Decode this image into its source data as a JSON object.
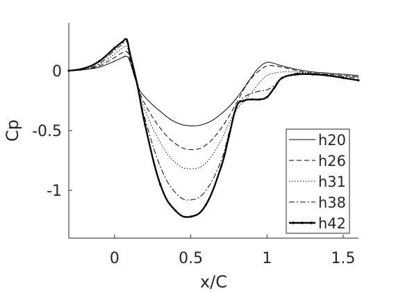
{
  "chart_data": {
    "type": "line",
    "title": "",
    "xlabel": "x/C",
    "ylabel": "Cp",
    "xlim": [
      -0.3,
      1.6
    ],
    "ylim": [
      -1.4,
      0.4
    ],
    "xticks": [
      0,
      0.5,
      1,
      1.5
    ],
    "xtick_labels": [
      "0",
      "0.5",
      "1",
      "1.5"
    ],
    "yticks": [
      0,
      -0.5,
      -1
    ],
    "ytick_labels": [
      "0",
      "-0.5",
      "-1"
    ],
    "grid": false,
    "legend_position": "bottom-right",
    "series": [
      {
        "name": "h20",
        "style": "solid",
        "x": [
          -0.3,
          -0.2,
          -0.1,
          0.0,
          0.05,
          0.08,
          0.1,
          0.15,
          0.2,
          0.3,
          0.4,
          0.5,
          0.6,
          0.7,
          0.8,
          0.9,
          0.95,
          1.0,
          1.05,
          1.1,
          1.2,
          1.3,
          1.4,
          1.5,
          1.6
        ],
        "y": [
          0.0,
          0.01,
          0.03,
          0.08,
          0.11,
          0.12,
          0.08,
          -0.12,
          -0.22,
          -0.34,
          -0.43,
          -0.46,
          -0.44,
          -0.36,
          -0.23,
          -0.05,
          0.03,
          0.07,
          0.06,
          0.04,
          0.01,
          -0.01,
          -0.02,
          -0.03,
          -0.04
        ]
      },
      {
        "name": "h26",
        "style": "dashed",
        "x": [
          -0.3,
          -0.2,
          -0.1,
          0.0,
          0.05,
          0.08,
          0.1,
          0.15,
          0.2,
          0.3,
          0.4,
          0.5,
          0.6,
          0.7,
          0.8,
          0.85,
          0.9,
          0.95,
          1.0,
          1.05,
          1.1,
          1.2,
          1.3,
          1.4,
          1.5,
          1.6
        ],
        "y": [
          0.0,
          0.01,
          0.04,
          0.11,
          0.15,
          0.16,
          0.1,
          -0.12,
          -0.28,
          -0.48,
          -0.61,
          -0.66,
          -0.62,
          -0.48,
          -0.27,
          -0.15,
          -0.06,
          0.0,
          0.04,
          0.04,
          0.03,
          0.0,
          -0.02,
          -0.03,
          -0.04,
          -0.05
        ]
      },
      {
        "name": "h31",
        "style": "dotted",
        "x": [
          -0.3,
          -0.2,
          -0.1,
          0.0,
          0.05,
          0.08,
          0.1,
          0.15,
          0.2,
          0.3,
          0.4,
          0.5,
          0.6,
          0.7,
          0.75,
          0.8,
          0.85,
          0.9,
          0.95,
          1.0,
          1.05,
          1.1,
          1.2,
          1.3,
          1.4,
          1.5,
          1.6
        ],
        "y": [
          0.0,
          0.01,
          0.05,
          0.14,
          0.19,
          0.2,
          0.12,
          -0.12,
          -0.33,
          -0.6,
          -0.77,
          -0.82,
          -0.77,
          -0.58,
          -0.44,
          -0.33,
          -0.25,
          -0.18,
          -0.1,
          -0.04,
          -0.02,
          -0.01,
          -0.01,
          -0.02,
          -0.03,
          -0.04,
          -0.05
        ]
      },
      {
        "name": "h38",
        "style": "dashdot",
        "x": [
          -0.3,
          -0.2,
          -0.1,
          0.0,
          0.05,
          0.08,
          0.1,
          0.15,
          0.2,
          0.3,
          0.4,
          0.5,
          0.6,
          0.7,
          0.75,
          0.8,
          0.85,
          0.9,
          0.95,
          1.0,
          1.05,
          1.1,
          1.2,
          1.3,
          1.4,
          1.5,
          1.6
        ],
        "y": [
          0.0,
          0.01,
          0.06,
          0.17,
          0.22,
          0.24,
          0.14,
          -0.12,
          -0.4,
          -0.8,
          -1.02,
          -1.08,
          -1.0,
          -0.75,
          -0.52,
          -0.3,
          -0.22,
          -0.19,
          -0.17,
          -0.16,
          -0.12,
          -0.06,
          -0.02,
          -0.03,
          -0.04,
          -0.05,
          -0.06
        ]
      },
      {
        "name": "h42",
        "style": "bold-dotted",
        "x": [
          -0.3,
          -0.2,
          -0.1,
          0.0,
          0.05,
          0.08,
          0.1,
          0.15,
          0.2,
          0.3,
          0.4,
          0.5,
          0.6,
          0.7,
          0.75,
          0.8,
          0.85,
          0.9,
          0.95,
          1.0,
          1.05,
          1.1,
          1.2,
          1.3,
          1.4,
          1.5,
          1.6
        ],
        "y": [
          0.0,
          0.02,
          0.08,
          0.19,
          0.24,
          0.26,
          0.15,
          -0.12,
          -0.45,
          -0.95,
          -1.17,
          -1.22,
          -1.12,
          -0.8,
          -0.55,
          -0.3,
          -0.25,
          -0.24,
          -0.24,
          -0.22,
          -0.14,
          -0.06,
          -0.03,
          -0.03,
          -0.04,
          -0.06,
          -0.08
        ]
      }
    ]
  }
}
